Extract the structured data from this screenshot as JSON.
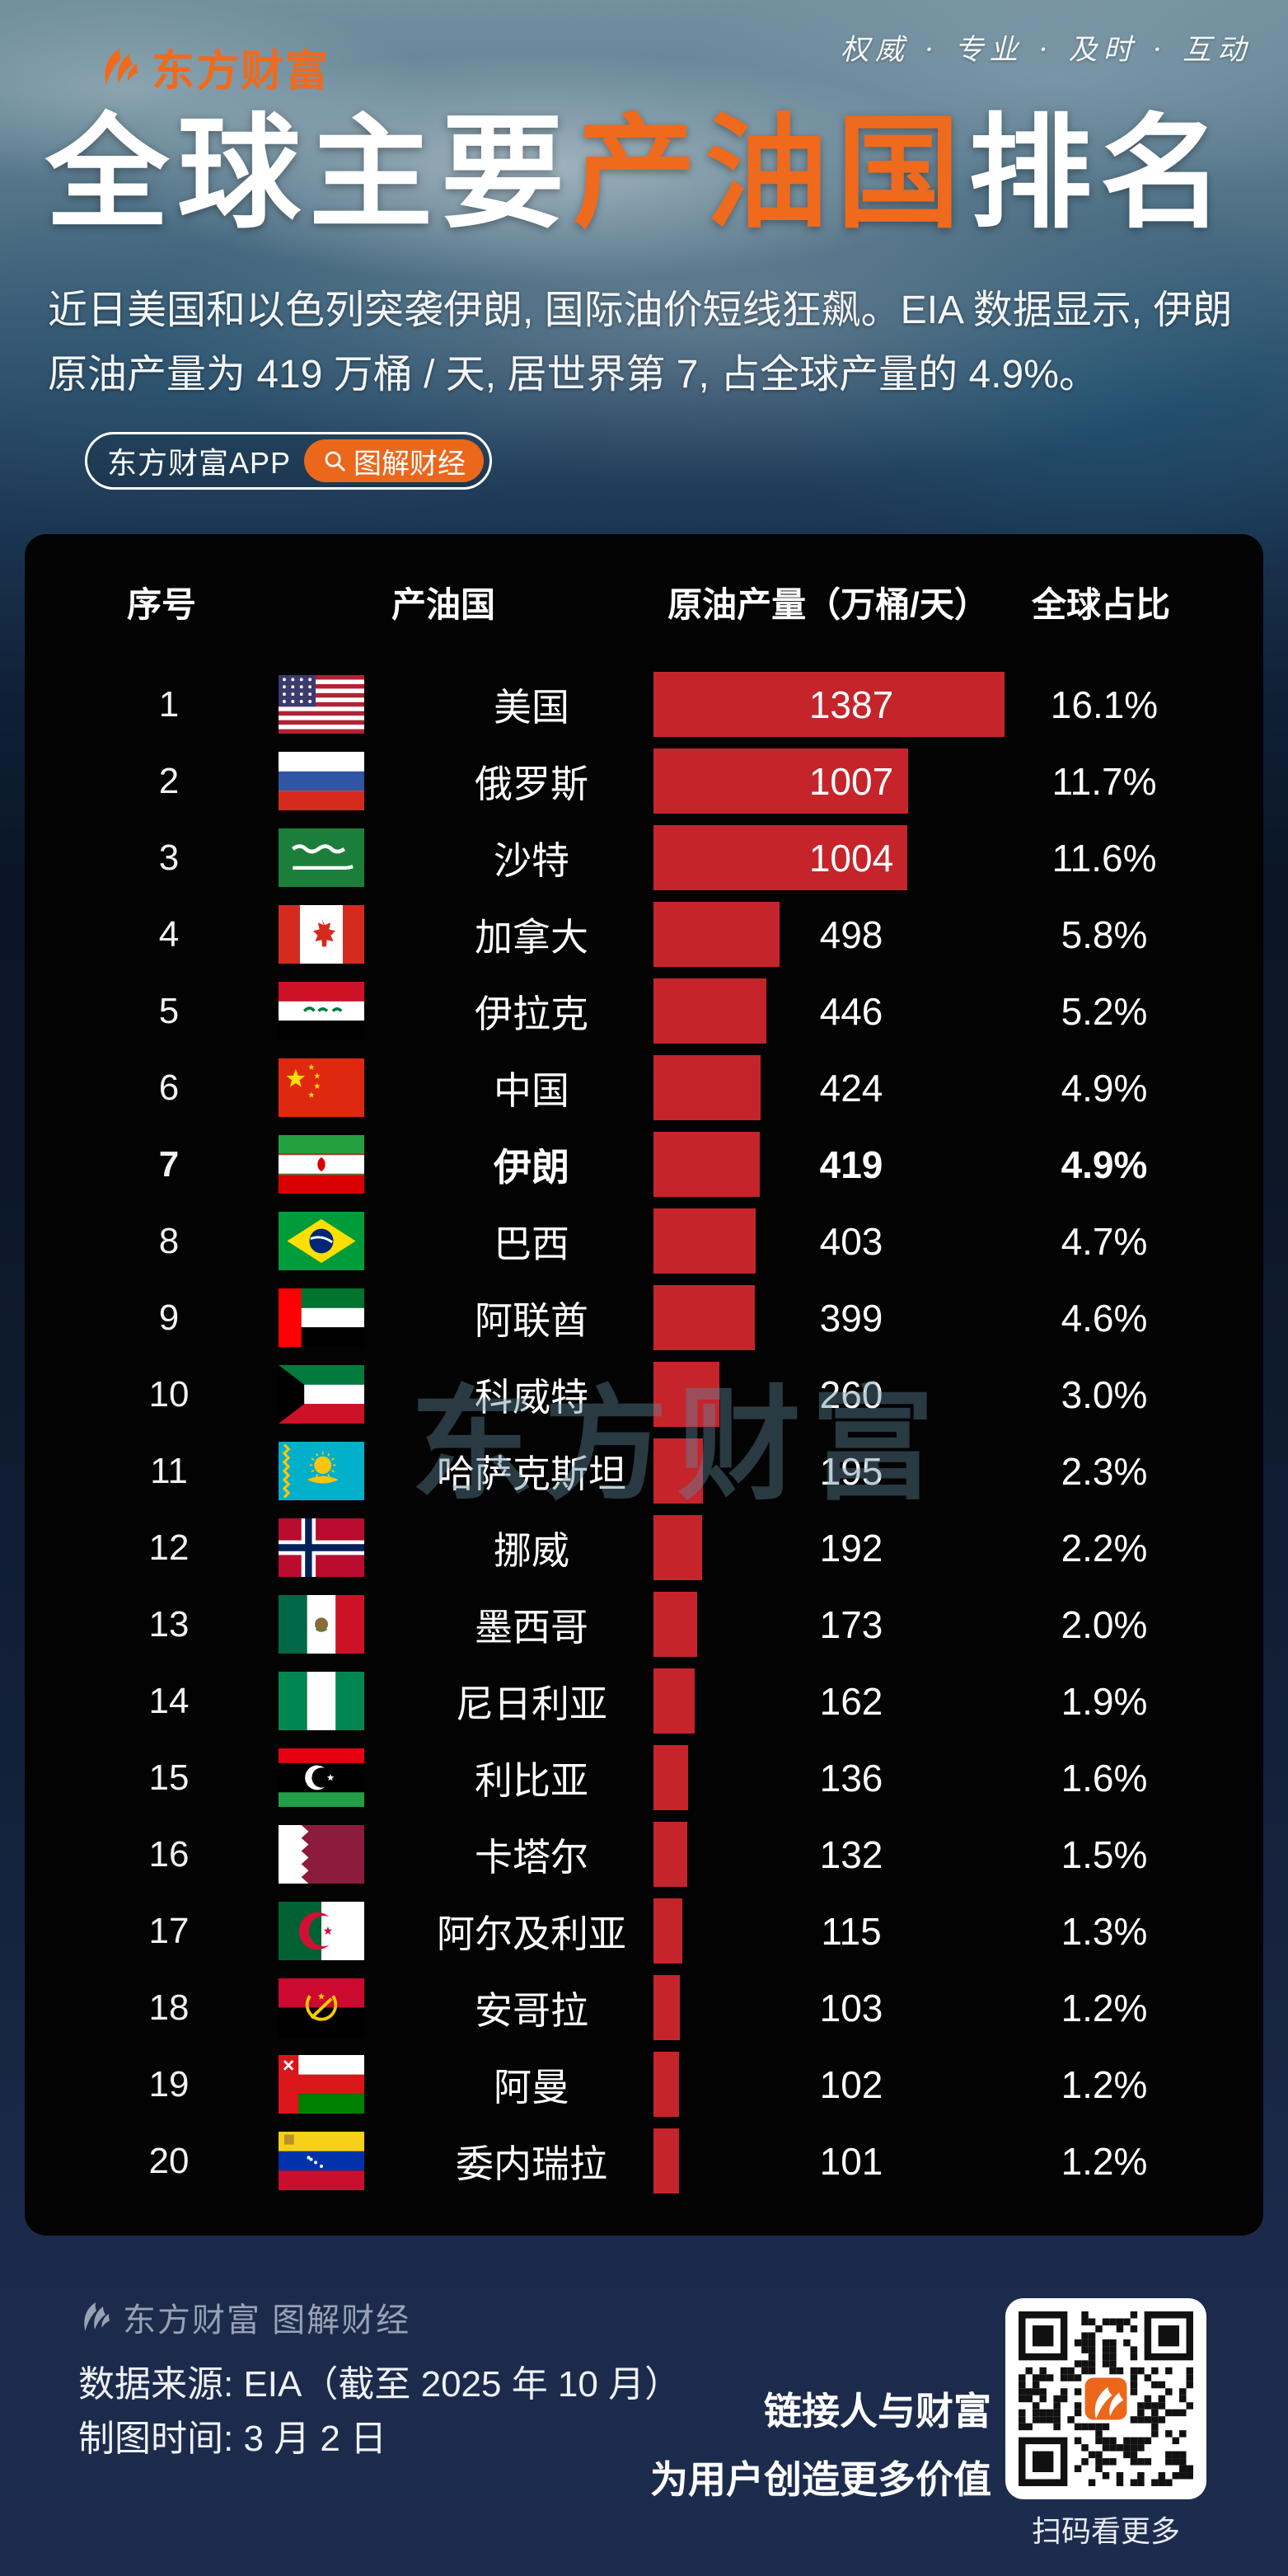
{
  "brand": {
    "logo_text": "东方财富",
    "slogan": "权威 · 专业 · 及时 · 互动",
    "accent_color": "#ef6a1d"
  },
  "title": {
    "prefix": "全球主要",
    "highlight": "产油国",
    "suffix": "排名"
  },
  "intro": "近日美国和以色列突袭伊朗, 国际油价短线狂飙。EIA 数据显示, 伊朗原油产量为 419 万桶 / 天, 居世界第 7, 占全球产量的 4.9%。",
  "badges": {
    "app_label": "东方财富APP",
    "tag_label": "图解财经"
  },
  "watermark": "东方财富",
  "chart_data": {
    "type": "bar",
    "title": "全球主要产油国排名",
    "columns": [
      "序号",
      "产油国",
      "原油产量（万桶/天）",
      "全球占比"
    ],
    "unit": "万桶/天",
    "max_value": 1387,
    "bar_color": "#c5242b",
    "highlight_rank": 7,
    "rows": [
      {
        "rank": 1,
        "country": "美国",
        "flag": "us",
        "value": 1387,
        "share": "16.1%"
      },
      {
        "rank": 2,
        "country": "俄罗斯",
        "flag": "ru",
        "value": 1007,
        "share": "11.7%"
      },
      {
        "rank": 3,
        "country": "沙特",
        "flag": "sa",
        "value": 1004,
        "share": "11.6%"
      },
      {
        "rank": 4,
        "country": "加拿大",
        "flag": "ca",
        "value": 498,
        "share": "5.8%"
      },
      {
        "rank": 5,
        "country": "伊拉克",
        "flag": "iq",
        "value": 446,
        "share": "5.2%"
      },
      {
        "rank": 6,
        "country": "中国",
        "flag": "cn",
        "value": 424,
        "share": "4.9%"
      },
      {
        "rank": 7,
        "country": "伊朗",
        "flag": "ir",
        "value": 419,
        "share": "4.9%"
      },
      {
        "rank": 8,
        "country": "巴西",
        "flag": "br",
        "value": 403,
        "share": "4.7%"
      },
      {
        "rank": 9,
        "country": "阿联酋",
        "flag": "ae",
        "value": 399,
        "share": "4.6%"
      },
      {
        "rank": 10,
        "country": "科威特",
        "flag": "kw",
        "value": 260,
        "share": "3.0%"
      },
      {
        "rank": 11,
        "country": "哈萨克斯坦",
        "flag": "kz",
        "value": 195,
        "share": "2.3%"
      },
      {
        "rank": 12,
        "country": "挪威",
        "flag": "no",
        "value": 192,
        "share": "2.2%"
      },
      {
        "rank": 13,
        "country": "墨西哥",
        "flag": "mx",
        "value": 173,
        "share": "2.0%"
      },
      {
        "rank": 14,
        "country": "尼日利亚",
        "flag": "ng",
        "value": 162,
        "share": "1.9%"
      },
      {
        "rank": 15,
        "country": "利比亚",
        "flag": "ly",
        "value": 136,
        "share": "1.6%"
      },
      {
        "rank": 16,
        "country": "卡塔尔",
        "flag": "qa",
        "value": 132,
        "share": "1.5%"
      },
      {
        "rank": 17,
        "country": "阿尔及利亚",
        "flag": "dz",
        "value": 115,
        "share": "1.3%"
      },
      {
        "rank": 18,
        "country": "安哥拉",
        "flag": "ao",
        "value": 103,
        "share": "1.2%"
      },
      {
        "rank": 19,
        "country": "阿曼",
        "flag": "om",
        "value": 102,
        "share": "1.2%"
      },
      {
        "rank": 20,
        "country": "委内瑞拉",
        "flag": "ve",
        "value": 101,
        "share": "1.2%"
      }
    ]
  },
  "footer": {
    "brand_line": "东方财富 图解财经",
    "source_line": "数据来源: EIA（截至 2025 年 10 月）",
    "time_line": "制图时间: 3 月 2 日",
    "slogan_line1": "链接人与财富",
    "slogan_line2": "为用户创造更多价值",
    "qr_caption": "扫码看更多"
  }
}
